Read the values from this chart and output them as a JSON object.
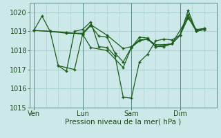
{
  "background_color": "#cce8e8",
  "grid_color": "#aad4d4",
  "line_color": "#1a5c1a",
  "xlabel": "Pression niveau de la mer( hPa )",
  "ylim": [
    1015.0,
    1020.5
  ],
  "yticks": [
    1015,
    1016,
    1017,
    1018,
    1019,
    1020
  ],
  "xtick_labels": [
    "Ven",
    "Lun",
    "Sam",
    "Dim"
  ],
  "xtick_positions": [
    0,
    24,
    48,
    72
  ],
  "vline_positions": [
    0,
    24,
    48,
    72
  ],
  "xlim": [
    -2,
    90
  ],
  "lines": [
    {
      "x": [
        0,
        4,
        8,
        12,
        16,
        20,
        24,
        28,
        32,
        36,
        40,
        44,
        48,
        52,
        56,
        60,
        64,
        68,
        72,
        76,
        80,
        84
      ],
      "y": [
        1019.05,
        1019.8,
        1019.0,
        1017.2,
        1016.9,
        1019.0,
        1019.1,
        1019.5,
        1018.2,
        1018.15,
        1017.7,
        1015.55,
        1015.5,
        1017.4,
        1017.8,
        1018.5,
        1018.6,
        1018.55,
        1018.8,
        1020.1,
        1019.0,
        1019.1
      ]
    },
    {
      "x": [
        0,
        8,
        16,
        24,
        28,
        36,
        44,
        48,
        52,
        56,
        60,
        64,
        68,
        72,
        76,
        80,
        84
      ],
      "y": [
        1019.05,
        1019.0,
        1018.9,
        1018.9,
        1019.35,
        1018.8,
        1018.1,
        1018.2,
        1018.55,
        1018.6,
        1018.3,
        1018.3,
        1018.35,
        1018.8,
        1019.7,
        1019.1,
        1019.15
      ]
    },
    {
      "x": [
        0,
        8,
        16,
        24,
        28,
        32,
        36,
        40,
        44,
        48,
        52,
        56,
        60,
        68,
        76,
        80,
        84
      ],
      "y": [
        1019.05,
        1019.0,
        1018.95,
        1018.85,
        1019.3,
        1018.75,
        1018.7,
        1017.85,
        1017.4,
        1018.15,
        1018.7,
        1018.65,
        1018.2,
        1018.35,
        1019.75,
        1019.0,
        1019.1
      ]
    },
    {
      "x": [
        12,
        20,
        24,
        28,
        36,
        44,
        48,
        52,
        56,
        60,
        64,
        68,
        72,
        76,
        80,
        84
      ],
      "y": [
        1017.2,
        1017.0,
        1018.85,
        1018.15,
        1018.0,
        1017.1,
        1018.15,
        1018.5,
        1018.6,
        1018.2,
        1018.2,
        1018.35,
        1018.8,
        1019.9,
        1019.05,
        1019.15
      ]
    }
  ]
}
